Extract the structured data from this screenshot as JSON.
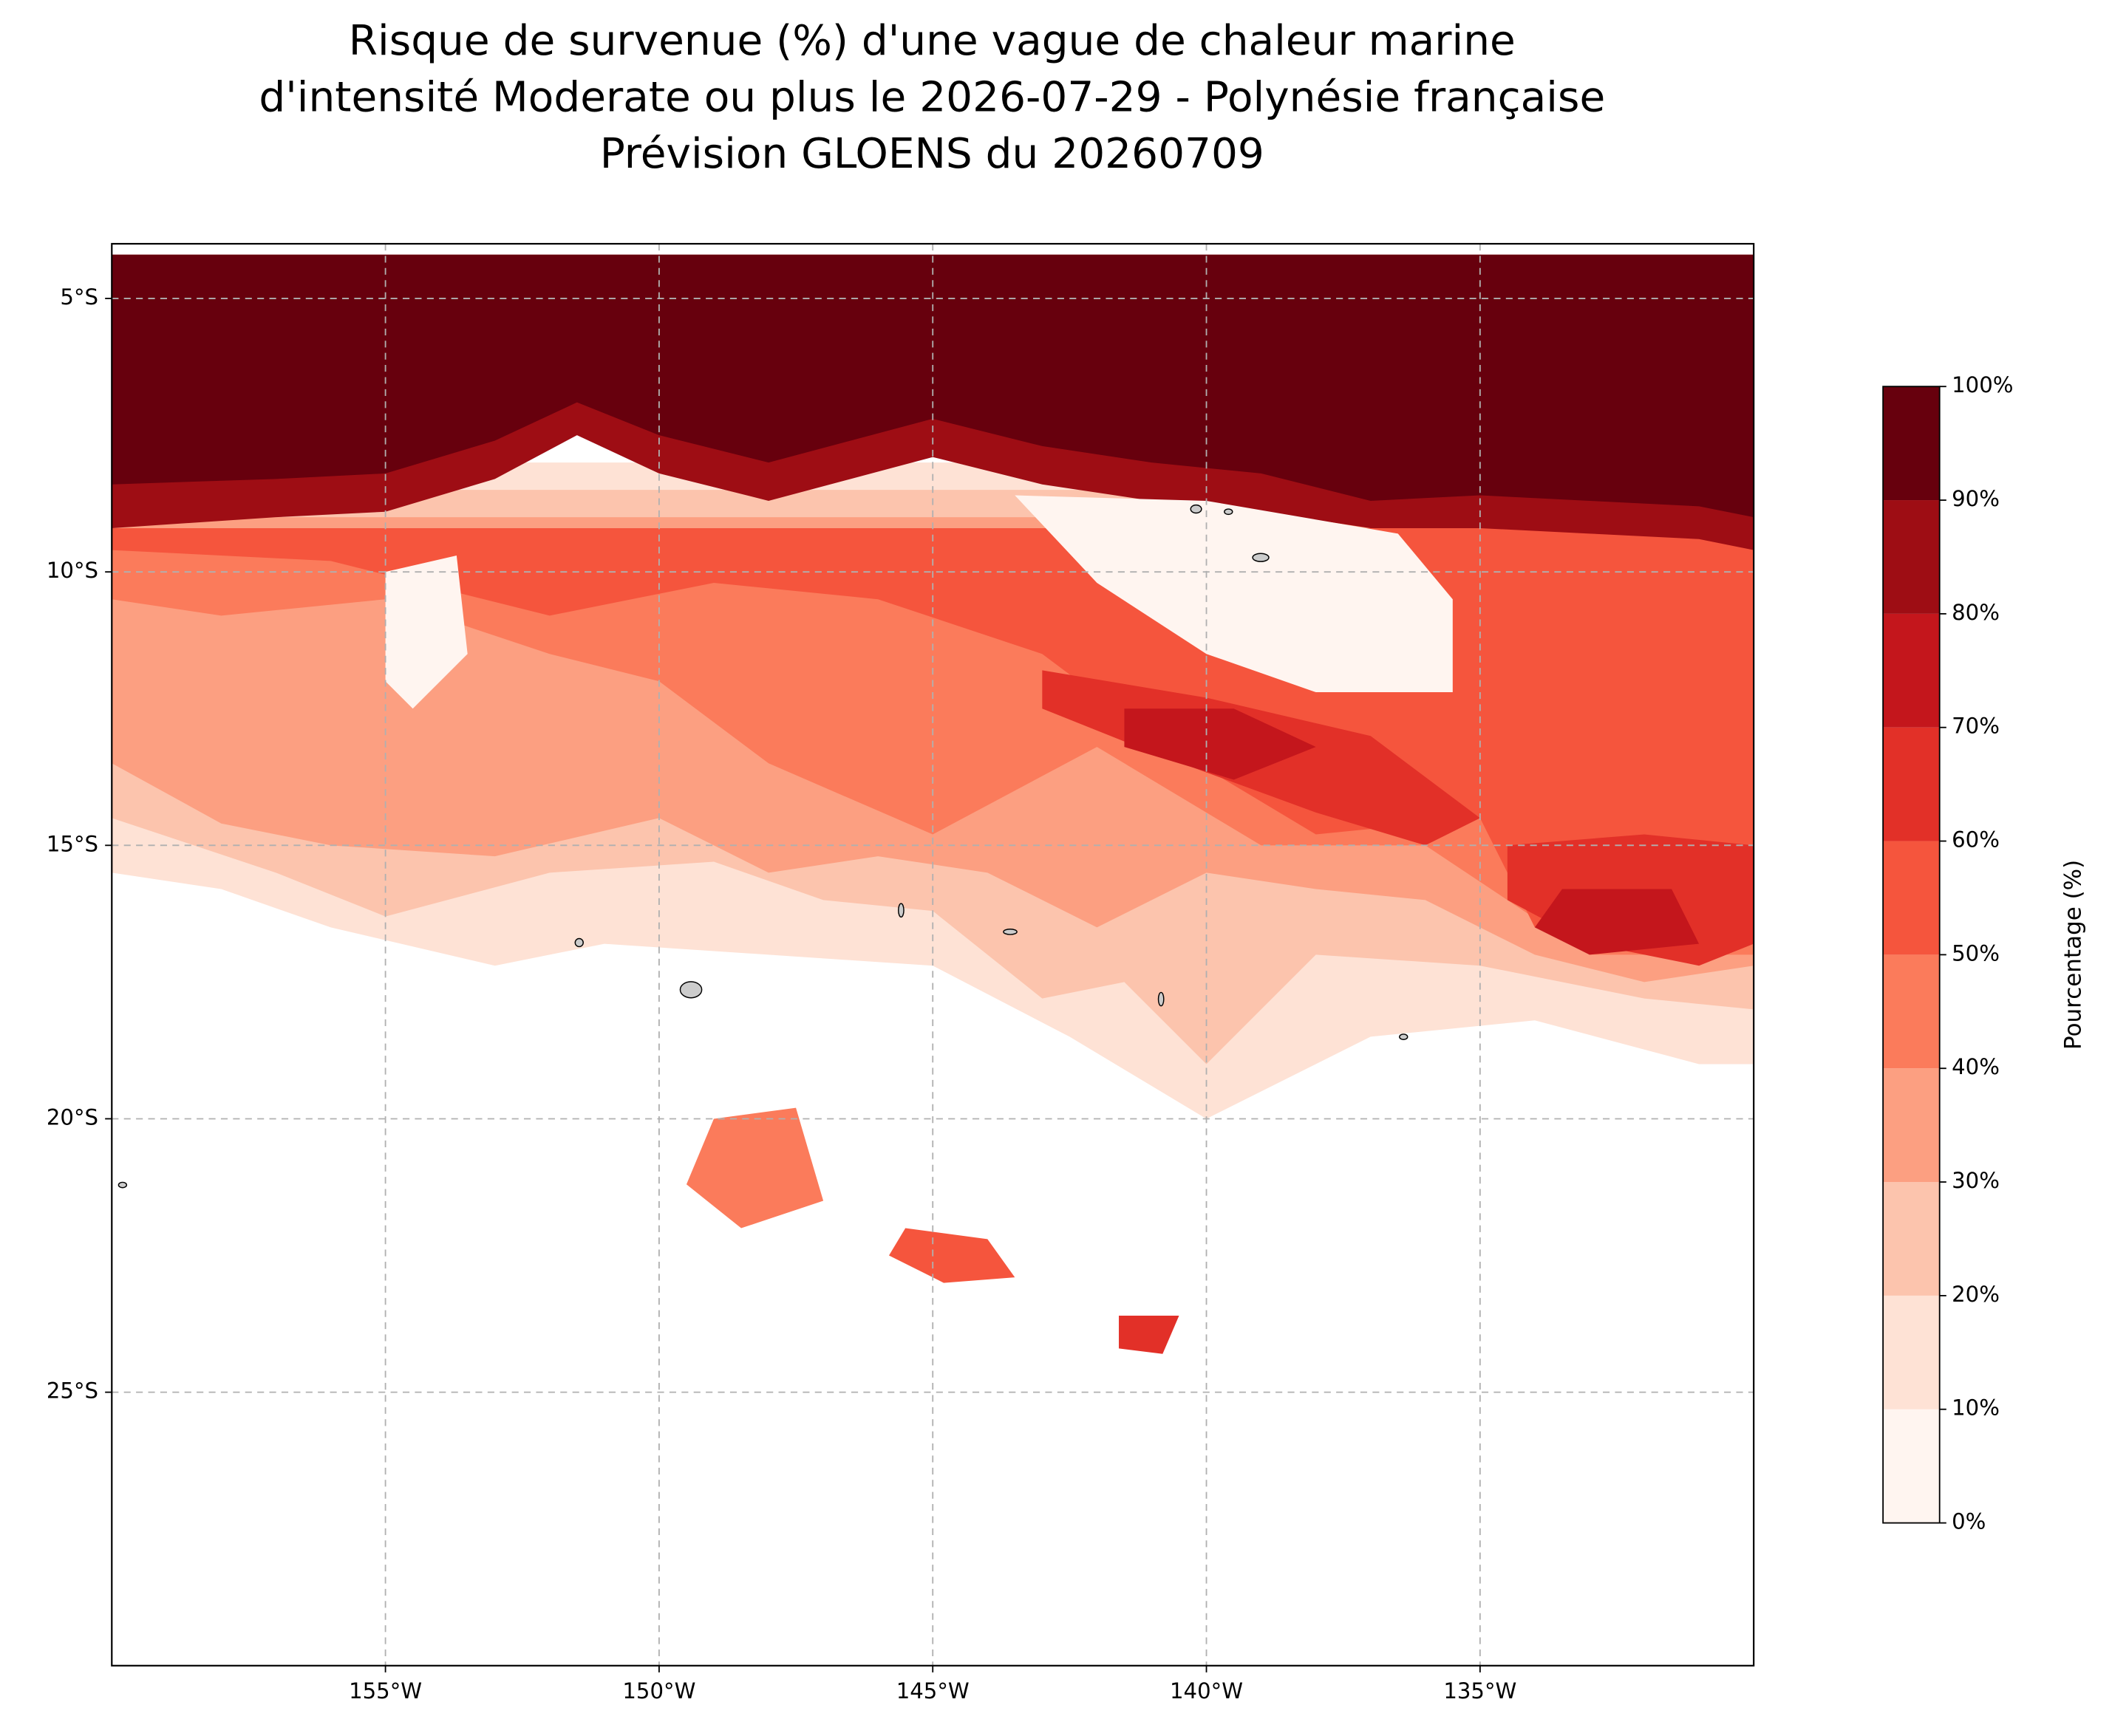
{
  "chart_data": {
    "type": "contour",
    "title": [
      "Risque de survenue (%) d'une vague de chaleur marine",
      "d'intensité Moderate ou plus le 2026-07-29 - Polynésie française",
      "Prévision GLOENS du 20260709"
    ],
    "xlim": [
      -160,
      -130
    ],
    "ylim": [
      -30,
      -4
    ],
    "xticks": [
      {
        "value": -155,
        "label": "155°W"
      },
      {
        "value": -150,
        "label": "150°W"
      },
      {
        "value": -145,
        "label": "145°W"
      },
      {
        "value": -140,
        "label": "140°W"
      },
      {
        "value": -135,
        "label": "135°W"
      }
    ],
    "yticks": [
      {
        "value": -5,
        "label": "5°S"
      },
      {
        "value": -10,
        "label": "10°S"
      },
      {
        "value": -15,
        "label": "15°S"
      },
      {
        "value": -20,
        "label": "20°S"
      },
      {
        "value": -25,
        "label": "25°S"
      }
    ],
    "grid": true,
    "colorbar": {
      "label": "Pourcentage (%)",
      "ticks": [
        {
          "value": 0,
          "label": "0%"
        },
        {
          "value": 10,
          "label": "10%"
        },
        {
          "value": 20,
          "label": "20%"
        },
        {
          "value": 30,
          "label": "30%"
        },
        {
          "value": 40,
          "label": "40%"
        },
        {
          "value": 50,
          "label": "50%"
        },
        {
          "value": 60,
          "label": "60%"
        },
        {
          "value": 70,
          "label": "70%"
        },
        {
          "value": 80,
          "label": "80%"
        },
        {
          "value": 90,
          "label": "90%"
        },
        {
          "value": 100,
          "label": "100%"
        }
      ],
      "colors": [
        "#fff5f0",
        "#fee2d5",
        "#fcc4ad",
        "#fc9f81",
        "#fb7b5b",
        "#f5553d",
        "#e23028",
        "#c4161c",
        "#9e0d14",
        "#67000d"
      ]
    },
    "field": [
      {
        "level": 10,
        "lon": [
          -160,
          -130,
          -130,
          -131,
          -134,
          -137,
          -140,
          -142.5,
          -145,
          -148,
          -151,
          -153,
          -156,
          -158,
          -160
        ],
        "lat": [
          -8,
          -8,
          -19,
          -19,
          -18.2,
          -18.5,
          -20,
          -18.5,
          -17.2,
          -17,
          -16.8,
          -17.2,
          -16.5,
          -15.8,
          -15.5
        ]
      },
      {
        "level": 20,
        "lon": [
          -160,
          -130,
          -130,
          -132,
          -135,
          -138,
          -140,
          -141.5,
          -143,
          -145,
          -147,
          -149,
          -152,
          -155,
          -157,
          -160
        ],
        "lat": [
          -8.5,
          -8.5,
          -18,
          -17.8,
          -17.2,
          -17,
          -19,
          -17.5,
          -17.8,
          -16.2,
          -16,
          -15.3,
          -15.5,
          -16.3,
          -15.5,
          -14.5
        ]
      },
      {
        "level": 30,
        "lon": [
          -160,
          -130,
          -130,
          -132,
          -134,
          -136,
          -138,
          -140,
          -142,
          -144,
          -146,
          -148,
          -150,
          -153,
          -156,
          -158,
          -160
        ],
        "lat": [
          -9,
          -9,
          -17.2,
          -17.5,
          -17,
          -16,
          -15.8,
          -15.5,
          -16.5,
          -15.5,
          -15.2,
          -15.5,
          -14.5,
          -15.2,
          -15,
          -14.6,
          -13.5
        ]
      },
      {
        "level": 40,
        "lon": [
          -160,
          -130,
          -130,
          -133,
          -136,
          -139,
          -142,
          -145,
          -148,
          -150,
          -152,
          -155,
          -158,
          -160
        ],
        "lat": [
          -9.5,
          -9.5,
          -17,
          -17,
          -15,
          -15,
          -13.2,
          -14.8,
          -13.5,
          -12,
          -11.5,
          -10.5,
          -10.8,
          -10.5
        ]
      },
      {
        "level": 50,
        "lon": [
          -160,
          -130,
          -130,
          -132,
          -134,
          -135,
          -138,
          -141,
          -143,
          -146,
          -149,
          -152,
          -156,
          -160
        ],
        "lat": [
          -9.2,
          -9.2,
          -16.8,
          -17,
          -16.5,
          -14.5,
          -14.8,
          -13,
          -11.5,
          -10.5,
          -10.2,
          -10.8,
          -9.8,
          -9.6
        ]
      },
      {
        "level": 60,
        "lon": [
          -143,
          -140,
          -137,
          -135,
          -136,
          -138,
          -141,
          -143
        ],
        "lat": [
          -11.8,
          -12.3,
          -13,
          -14.5,
          -15,
          -14.4,
          -13.3,
          -12.5
        ]
      },
      {
        "level": 60,
        "lon": [
          -134.5,
          -132,
          -130,
          -130,
          -131,
          -133,
          -134.5
        ],
        "lat": [
          -15,
          -14.8,
          -15,
          -16.8,
          -17.2,
          -16.8,
          -16
        ]
      },
      {
        "level": 70,
        "lon": [
          -141.5,
          -139.5,
          -138,
          -139.5,
          -141.5
        ],
        "lat": [
          -12.5,
          -12.5,
          -13.2,
          -13.8,
          -13.2
        ]
      },
      {
        "level": 70,
        "lon": [
          -133.5,
          -131.5,
          -131,
          -133,
          -134
        ],
        "lat": [
          -15.8,
          -15.8,
          -16.8,
          -17,
          -16.5
        ]
      },
      {
        "level": 80,
        "lon": [
          -160,
          -130,
          -130,
          -131,
          -133,
          -135,
          -137,
          -139,
          -141,
          -143,
          -145,
          -146.5,
          -148,
          -150,
          -151.5,
          -153,
          -155,
          -157,
          -160
        ],
        "lat": [
          -4.2,
          -4.2,
          -9.6,
          -9.4,
          -9.3,
          -9.2,
          -9.2,
          -8.9,
          -8.7,
          -8.4,
          -7.9,
          -8.3,
          -8.7,
          -8.2,
          -7.5,
          -8.3,
          -8.9,
          -9,
          -9.2
        ]
      },
      {
        "level": 90,
        "lon": [
          -160,
          -130,
          -130,
          -131,
          -133,
          -135,
          -137,
          -139,
          -141,
          -143,
          -145,
          -146.5,
          -148,
          -150,
          -151.5,
          -153,
          -155,
          -157,
          -160
        ],
        "lat": [
          -4.2,
          -4.2,
          -9,
          -8.8,
          -8.7,
          -8.6,
          -8.7,
          -8.2,
          -8,
          -7.7,
          -7.2,
          -7.6,
          -8,
          -7.5,
          -6.9,
          -7.6,
          -8.2,
          -8.3,
          -8.4
        ]
      },
      {
        "level": 0,
        "lon": [
          -143.5,
          -140,
          -136.5,
          -135.5,
          -135.5,
          -138,
          -140,
          -142
        ],
        "lat": [
          -8.6,
          -8.7,
          -9.3,
          -10.5,
          -12.2,
          -12.2,
          -11.5,
          -10.2
        ]
      },
      {
        "level": 0,
        "lon": [
          -155,
          -153.7,
          -153.5,
          -154.5,
          -155
        ],
        "lat": [
          -10,
          -9.7,
          -11.5,
          -12.5,
          -12
        ]
      },
      {
        "level": 40,
        "lon": [
          -149,
          -147.5,
          -147,
          -148.5,
          -149.5
        ],
        "lat": [
          -20,
          -19.8,
          -21.5,
          -22,
          -21.2
        ]
      },
      {
        "level": 50,
        "lon": [
          -145.5,
          -144,
          -143.5,
          -144.8,
          -145.8
        ],
        "lat": [
          -22,
          -22.2,
          -22.9,
          -23,
          -22.5
        ]
      },
      {
        "level": 60,
        "lon": [
          -141.6,
          -140.5,
          -140.8,
          -141.6
        ],
        "lat": [
          -23.6,
          -23.6,
          -24.3,
          -24.2
        ]
      }
    ]
  }
}
